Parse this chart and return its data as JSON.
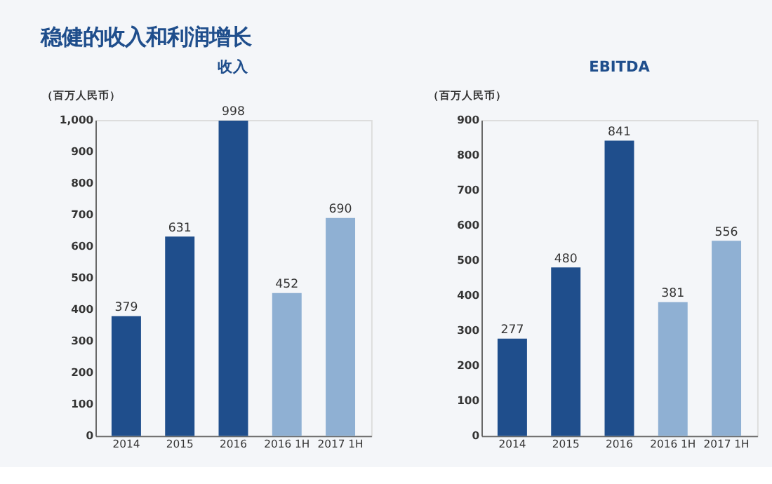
{
  "chart_data": [
    {
      "type": "bar",
      "title": "收入",
      "ylabel": "（百万人民币）",
      "annotations": [
        "稳健的收入和利润增长"
      ],
      "categories": [
        "2014",
        "2015",
        "2016",
        "2016 1H",
        "2017 1H"
      ],
      "values": [
        379,
        631,
        998,
        452,
        690
      ],
      "colors": [
        "#1f4e8c",
        "#1f4e8c",
        "#1f4e8c",
        "#8fb0d3",
        "#8fb0d3"
      ],
      "ylim": [
        0,
        1000
      ],
      "yticks": [
        0,
        100,
        200,
        300,
        400,
        500,
        600,
        700,
        800,
        900,
        {
          "value": 1000,
          "label": "1,000"
        }
      ],
      "grid": false,
      "data_labels": true
    },
    {
      "type": "bar",
      "title": "EBITDA",
      "ylabel": "（百万人民币）",
      "categories": [
        "2014",
        "2015",
        "2016",
        "2016 1H",
        "2017 1H"
      ],
      "values": [
        277,
        480,
        841,
        381,
        556
      ],
      "colors": [
        "#1f4e8c",
        "#1f4e8c",
        "#1f4e8c",
        "#8fb0d3",
        "#8fb0d3"
      ],
      "ylim": [
        0,
        900
      ],
      "yticks": [
        0,
        100,
        200,
        300,
        400,
        500,
        600,
        700,
        800,
        900
      ],
      "grid": false,
      "data_labels": true
    }
  ]
}
